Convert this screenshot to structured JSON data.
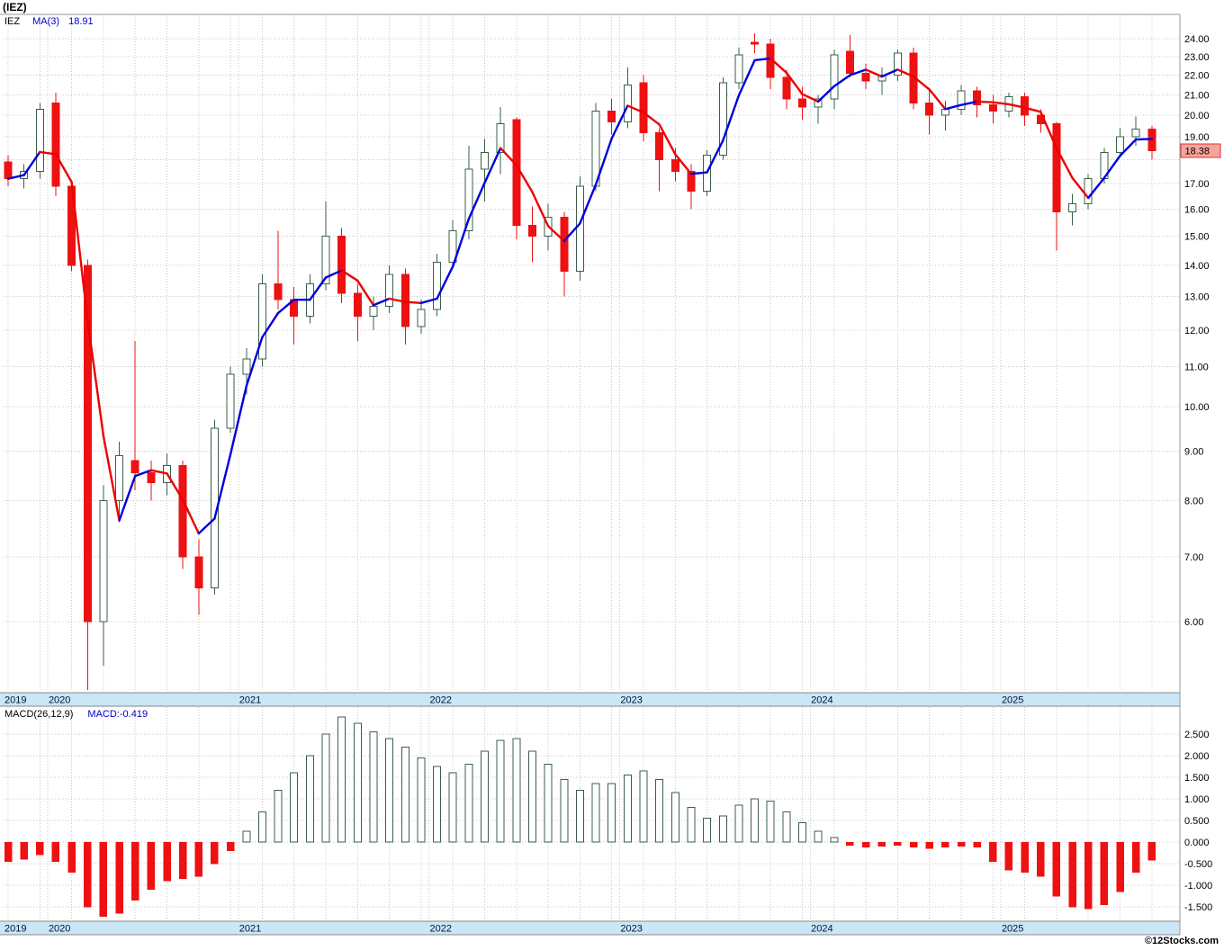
{
  "header": {
    "title": "(IEZ)"
  },
  "legend": {
    "symbol": "IEZ",
    "ma_label": "MA(3)",
    "ma_value": "18.91"
  },
  "macd_legend": {
    "label": "MACD(26,12,9)",
    "value": "MACD:-0.419"
  },
  "price_label": {
    "value": "18.38",
    "bg": "#f7a49c",
    "border": "#e03030"
  },
  "footer": {
    "copyright": "©12Stocks.com"
  },
  "colors": {
    "up_fill": "#ffffff",
    "up_outline": "#3a6049",
    "down": "#ee1111",
    "grid": "#c9c9c9",
    "band_fill": "#cbe6f5",
    "band_text": "#00113a",
    "axis_text": "#000000",
    "border": "#999999"
  },
  "chart_data": [
    {
      "type": "candlestick",
      "title": "IEZ monthly price with MA(3)",
      "yscale": "log",
      "y_anchor": {
        "top_price": 24,
        "bottom_price": 6
      },
      "months": [
        "2019-10",
        "2019-11",
        "2019-12",
        "2020-01",
        "2020-02",
        "2020-03",
        "2020-04",
        "2020-05",
        "2020-06",
        "2020-07",
        "2020-08",
        "2020-09",
        "2020-10",
        "2020-11",
        "2020-12",
        "2021-01",
        "2021-02",
        "2021-03",
        "2021-04",
        "2021-05",
        "2021-06",
        "2021-07",
        "2021-08",
        "2021-09",
        "2021-10",
        "2021-11",
        "2021-12",
        "2022-01",
        "2022-02",
        "2022-03",
        "2022-04",
        "2022-05",
        "2022-06",
        "2022-07",
        "2022-08",
        "2022-09",
        "2022-10",
        "2022-11",
        "2022-12",
        "2023-01",
        "2023-02",
        "2023-03",
        "2023-04",
        "2023-05",
        "2023-06",
        "2023-07",
        "2023-08",
        "2023-09",
        "2023-10",
        "2023-11",
        "2023-12",
        "2024-01",
        "2024-02",
        "2024-03",
        "2024-04",
        "2024-05",
        "2024-06",
        "2024-07",
        "2024-08",
        "2024-09",
        "2024-10",
        "2024-11",
        "2024-12",
        "2025-01",
        "2025-02",
        "2025-03",
        "2025-04",
        "2025-05",
        "2025-06",
        "2025-07",
        "2025-08",
        "2025-09",
        "2025-10"
      ],
      "ohlc": [
        [
          17.9,
          18.2,
          16.9,
          17.2
        ],
        [
          17.2,
          17.8,
          16.8,
          17.5
        ],
        [
          17.5,
          20.6,
          17.2,
          20.3
        ],
        [
          20.6,
          21.1,
          16.5,
          16.9
        ],
        [
          16.9,
          17.1,
          13.8,
          14.0
        ],
        [
          14.0,
          14.2,
          5.1,
          6.0
        ],
        [
          6.0,
          8.3,
          5.4,
          8.0
        ],
        [
          8.0,
          9.2,
          7.6,
          8.9
        ],
        [
          8.8,
          11.7,
          8.2,
          8.55
        ],
        [
          8.55,
          8.8,
          8.0,
          8.35
        ],
        [
          8.35,
          8.95,
          8.1,
          8.7
        ],
        [
          8.7,
          8.8,
          6.8,
          7.0
        ],
        [
          7.0,
          7.3,
          6.1,
          6.5
        ],
        [
          6.5,
          9.7,
          6.4,
          9.5
        ],
        [
          9.5,
          11.0,
          9.4,
          10.8
        ],
        [
          10.8,
          11.5,
          10.3,
          11.2
        ],
        [
          11.2,
          13.7,
          11.0,
          13.4
        ],
        [
          13.4,
          15.2,
          12.6,
          12.9
        ],
        [
          12.9,
          13.3,
          11.6,
          12.4
        ],
        [
          12.4,
          13.7,
          12.2,
          13.4
        ],
        [
          13.4,
          16.3,
          13.2,
          15.0
        ],
        [
          15.0,
          15.3,
          12.8,
          13.1
        ],
        [
          13.1,
          13.4,
          11.7,
          12.4
        ],
        [
          12.4,
          13.0,
          12.0,
          12.7
        ],
        [
          12.7,
          14.0,
          12.5,
          13.7
        ],
        [
          13.7,
          13.9,
          11.6,
          12.1
        ],
        [
          12.1,
          12.9,
          11.9,
          12.6
        ],
        [
          12.6,
          14.4,
          12.4,
          14.1
        ],
        [
          14.1,
          15.6,
          13.9,
          15.2
        ],
        [
          15.2,
          18.6,
          14.9,
          17.6
        ],
        [
          17.6,
          18.9,
          16.3,
          18.3
        ],
        [
          18.3,
          20.4,
          17.4,
          19.6
        ],
        [
          19.8,
          19.9,
          14.9,
          15.4
        ],
        [
          15.4,
          16.1,
          14.1,
          15.0
        ],
        [
          15.0,
          16.2,
          14.5,
          15.7
        ],
        [
          15.7,
          15.9,
          13.0,
          13.8
        ],
        [
          13.8,
          17.3,
          13.5,
          16.9
        ],
        [
          16.9,
          20.6,
          16.7,
          20.2
        ],
        [
          20.2,
          20.8,
          19.1,
          19.7
        ],
        [
          19.7,
          22.4,
          19.4,
          21.5
        ],
        [
          21.6,
          22.0,
          18.8,
          19.2
        ],
        [
          19.2,
          19.4,
          16.7,
          18.0
        ],
        [
          18.0,
          18.5,
          17.1,
          17.5
        ],
        [
          17.5,
          17.8,
          16.0,
          16.7
        ],
        [
          16.7,
          18.4,
          16.5,
          18.2
        ],
        [
          18.2,
          21.9,
          18.0,
          21.6
        ],
        [
          21.6,
          23.5,
          21.3,
          23.1
        ],
        [
          23.8,
          24.3,
          23.2,
          23.7
        ],
        [
          23.7,
          24.0,
          21.3,
          21.9
        ],
        [
          21.9,
          22.3,
          20.3,
          20.8
        ],
        [
          20.8,
          21.4,
          19.8,
          20.4
        ],
        [
          20.4,
          21.0,
          19.6,
          20.8
        ],
        [
          20.8,
          23.4,
          20.3,
          23.1
        ],
        [
          23.3,
          24.2,
          21.9,
          22.1
        ],
        [
          22.1,
          22.6,
          21.3,
          21.7
        ],
        [
          21.7,
          22.4,
          21.0,
          22.0
        ],
        [
          22.0,
          23.4,
          21.7,
          23.2
        ],
        [
          23.2,
          23.5,
          20.3,
          20.6
        ],
        [
          20.6,
          21.2,
          19.1,
          20.0
        ],
        [
          20.0,
          20.7,
          19.3,
          20.3
        ],
        [
          20.3,
          21.5,
          20.0,
          21.2
        ],
        [
          21.2,
          21.4,
          19.9,
          20.5
        ],
        [
          20.5,
          21.0,
          19.6,
          20.2
        ],
        [
          20.2,
          21.1,
          19.9,
          20.9
        ],
        [
          20.9,
          21.1,
          19.5,
          20.0
        ],
        [
          20.0,
          20.3,
          19.2,
          19.6
        ],
        [
          19.6,
          19.7,
          14.5,
          15.9
        ],
        [
          15.9,
          16.6,
          15.4,
          16.2
        ],
        [
          16.2,
          17.4,
          16.0,
          17.2
        ],
        [
          17.2,
          18.5,
          17.0,
          18.3
        ],
        [
          18.3,
          19.4,
          18.1,
          19.0
        ],
        [
          19.0,
          19.95,
          18.6,
          19.35
        ],
        [
          19.35,
          19.5,
          18.0,
          18.38
        ]
      ],
      "tick_values": [
        24,
        23,
        22,
        21,
        20,
        19,
        17,
        16,
        15,
        14,
        13,
        12,
        11,
        10,
        9,
        8,
        7,
        6
      ],
      "tick_labels": [
        "24.00",
        "23.00",
        "22.00",
        "21.00",
        "20.00",
        "19.00",
        "17.00",
        "16.00",
        "15.00",
        "14.00",
        "13.00",
        "12.00",
        "11.00",
        "10.00",
        "9.00",
        "8.00",
        "7.00",
        "6.00"
      ],
      "last_price": 18.38,
      "x_axis_years": [
        "2019",
        "2020",
        "2021",
        "2022",
        "2023",
        "2024",
        "2025"
      ],
      "overlays": [
        {
          "name": "MA(3)",
          "period": 3,
          "last_value": 18.91,
          "up_color": "#0000dd",
          "down_color": "#ee0000"
        }
      ]
    },
    {
      "type": "bar",
      "title": "MACD(26,12,9)",
      "values": [
        -0.45,
        -0.4,
        -0.3,
        -0.45,
        -0.7,
        -1.5,
        -1.72,
        -1.65,
        -1.35,
        -1.1,
        -0.9,
        -0.85,
        -0.8,
        -0.5,
        -0.2,
        0.25,
        0.7,
        1.2,
        1.6,
        2.0,
        2.5,
        2.9,
        2.75,
        2.55,
        2.4,
        2.2,
        1.95,
        1.75,
        1.6,
        1.8,
        2.1,
        2.35,
        2.4,
        2.1,
        1.8,
        1.45,
        1.2,
        1.35,
        1.35,
        1.55,
        1.65,
        1.45,
        1.15,
        0.8,
        0.55,
        0.6,
        0.85,
        1.0,
        0.95,
        0.7,
        0.45,
        0.25,
        0.1,
        -0.08,
        -0.12,
        -0.1,
        -0.08,
        -0.12,
        -0.15,
        -0.12,
        -0.1,
        -0.12,
        -0.45,
        -0.65,
        -0.7,
        -0.8,
        -1.25,
        -1.5,
        -1.55,
        -1.45,
        -1.15,
        -0.7,
        -0.419
      ],
      "last_value": -0.419,
      "tick_values": [
        2.5,
        2.0,
        1.5,
        1.0,
        0.5,
        0.0,
        -0.5,
        -1.0,
        -1.5
      ],
      "tick_labels": [
        "2.500",
        "2.000",
        "1.500",
        "1.000",
        "0.500",
        "0.000",
        "-0.500",
        "-1.000",
        "-1.500"
      ]
    }
  ]
}
